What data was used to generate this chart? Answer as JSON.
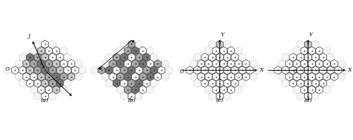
{
  "figsize": [
    5.0,
    1.98
  ],
  "dpi": 100,
  "bg_color": "#ffffff",
  "edge_color": "#111111",
  "fill_dark": "#777777",
  "fill_medium": "#aaaaaa",
  "fill_light": "#cccccc",
  "fill_white": "#ffffff",
  "hex_lw": 0.4,
  "ghost_lw": 0.3,
  "dot_ms": 0.8,
  "n_rings": 4,
  "panel_labels": [
    "(a)",
    "(b)",
    "(c)",
    "(d)"
  ]
}
